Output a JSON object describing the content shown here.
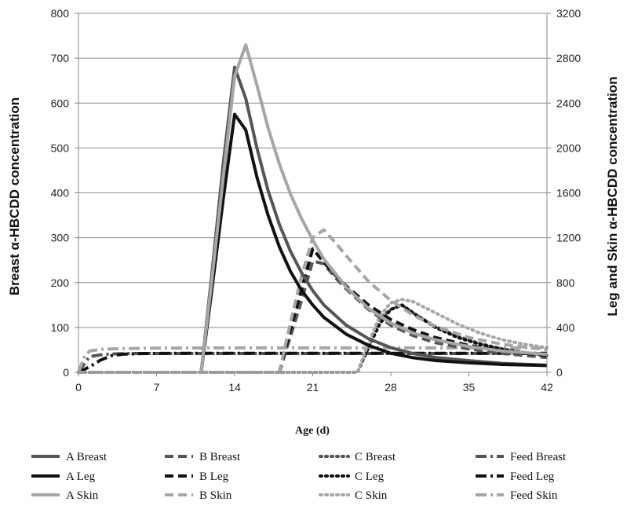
{
  "chart_data": {
    "type": "line",
    "title": "",
    "xlabel": "Age (d)",
    "ylabel_left": "Breast α-HBCDD concentration",
    "ylabel_right": "Leg and Skin α-HBCDD concentration",
    "xlim": [
      0,
      42
    ],
    "ylim_left": [
      0,
      800
    ],
    "ylim_right": [
      0,
      3200
    ],
    "x_ticks": [
      0,
      7,
      14,
      21,
      28,
      35,
      42
    ],
    "y_left_ticks": [
      0,
      100,
      200,
      300,
      400,
      500,
      600,
      700,
      800
    ],
    "y_right_ticks": [
      0,
      400,
      800,
      1200,
      1600,
      2000,
      2400,
      2800,
      3200
    ],
    "grid": "horizontal",
    "legend_position": "bottom",
    "colors": {
      "dark_gray": "#555555",
      "black": "#111111",
      "light_gray": "#a6a6a6"
    },
    "series": [
      {
        "name": "A Breast",
        "axis": "left",
        "style": "solid",
        "color": "#555555",
        "points": [
          [
            11,
            0
          ],
          [
            12,
            230
          ],
          [
            13,
            470
          ],
          [
            14,
            680
          ],
          [
            15,
            610
          ],
          [
            16,
            500
          ],
          [
            17,
            405
          ],
          [
            18,
            330
          ],
          [
            19,
            270
          ],
          [
            20,
            222
          ],
          [
            21,
            182
          ],
          [
            22,
            150
          ],
          [
            24,
            105
          ],
          [
            26,
            75
          ],
          [
            28,
            55
          ],
          [
            30,
            42
          ],
          [
            32,
            33
          ],
          [
            35,
            26
          ],
          [
            38,
            20
          ],
          [
            42,
            16
          ]
        ]
      },
      {
        "name": "A Leg",
        "axis": "right",
        "style": "solid",
        "color": "#111111",
        "points": [
          [
            11,
            0
          ],
          [
            12,
            770
          ],
          [
            13,
            1560
          ],
          [
            14,
            2300
          ],
          [
            15,
            2160
          ],
          [
            16,
            1740
          ],
          [
            17,
            1400
          ],
          [
            18,
            1120
          ],
          [
            19,
            900
          ],
          [
            20,
            730
          ],
          [
            21,
            600
          ],
          [
            22,
            490
          ],
          [
            24,
            340
          ],
          [
            26,
            240
          ],
          [
            28,
            170
          ],
          [
            30,
            130
          ],
          [
            32,
            105
          ],
          [
            35,
            85
          ],
          [
            38,
            70
          ],
          [
            42,
            60
          ]
        ]
      },
      {
        "name": "A Skin",
        "axis": "right",
        "style": "solid",
        "color": "#a6a6a6",
        "points": [
          [
            11,
            0
          ],
          [
            12,
            860
          ],
          [
            13,
            1760
          ],
          [
            14,
            2640
          ],
          [
            15,
            2920
          ],
          [
            16,
            2560
          ],
          [
            17,
            2180
          ],
          [
            18,
            1860
          ],
          [
            19,
            1590
          ],
          [
            20,
            1370
          ],
          [
            21,
            1180
          ],
          [
            22,
            1010
          ],
          [
            24,
            760
          ],
          [
            26,
            570
          ],
          [
            28,
            440
          ],
          [
            30,
            350
          ],
          [
            32,
            290
          ],
          [
            35,
            230
          ],
          [
            38,
            190
          ],
          [
            42,
            160
          ]
        ]
      },
      {
        "name": "B Breast",
        "axis": "left",
        "style": "dashed",
        "color": "#555555",
        "points": [
          [
            0,
            0
          ],
          [
            18,
            0
          ],
          [
            19,
            80
          ],
          [
            20,
            160
          ],
          [
            21,
            248
          ],
          [
            22,
            242
          ],
          [
            23,
            212
          ],
          [
            24,
            186
          ],
          [
            26,
            140
          ],
          [
            28,
            105
          ],
          [
            30,
            82
          ],
          [
            32,
            66
          ],
          [
            35,
            52
          ],
          [
            38,
            42
          ],
          [
            42,
            33
          ]
        ]
      },
      {
        "name": "B Leg",
        "axis": "right",
        "style": "dashed",
        "color": "#111111",
        "points": [
          [
            0,
            0
          ],
          [
            18,
            0
          ],
          [
            19,
            380
          ],
          [
            20,
            740
          ],
          [
            21,
            1100
          ],
          [
            22,
            980
          ],
          [
            23,
            870
          ],
          [
            24,
            770
          ],
          [
            26,
            600
          ],
          [
            28,
            470
          ],
          [
            30,
            380
          ],
          [
            32,
            310
          ],
          [
            35,
            240
          ],
          [
            38,
            190
          ],
          [
            42,
            150
          ]
        ]
      },
      {
        "name": "B Skin",
        "axis": "right",
        "style": "dashed",
        "color": "#a6a6a6",
        "points": [
          [
            0,
            0
          ],
          [
            18,
            0
          ],
          [
            19,
            440
          ],
          [
            20,
            860
          ],
          [
            21,
            1200
          ],
          [
            22,
            1270
          ],
          [
            23,
            1160
          ],
          [
            24,
            1040
          ],
          [
            26,
            810
          ],
          [
            28,
            640
          ],
          [
            30,
            510
          ],
          [
            32,
            410
          ],
          [
            35,
            310
          ],
          [
            38,
            250
          ],
          [
            42,
            200
          ]
        ]
      },
      {
        "name": "C Breast",
        "axis": "left",
        "style": "dotted",
        "color": "#555555",
        "points": [
          [
            0,
            0
          ],
          [
            25,
            0
          ],
          [
            26,
            60
          ],
          [
            27,
            120
          ],
          [
            28,
            140
          ],
          [
            29,
            150
          ],
          [
            30,
            132
          ],
          [
            32,
            102
          ],
          [
            34,
            80
          ],
          [
            36,
            64
          ],
          [
            38,
            52
          ],
          [
            40,
            44
          ],
          [
            42,
            38
          ]
        ]
      },
      {
        "name": "C Leg",
        "axis": "right",
        "style": "dotted",
        "color": "#111111",
        "points": [
          [
            0,
            0
          ],
          [
            25,
            0
          ],
          [
            26,
            220
          ],
          [
            27,
            430
          ],
          [
            28,
            560
          ],
          [
            29,
            600
          ],
          [
            30,
            530
          ],
          [
            32,
            400
          ],
          [
            34,
            310
          ],
          [
            36,
            250
          ],
          [
            38,
            205
          ],
          [
            40,
            175
          ],
          [
            42,
            150
          ]
        ]
      },
      {
        "name": "C Skin",
        "axis": "right",
        "style": "dotted",
        "color": "#a6a6a6",
        "points": [
          [
            0,
            0
          ],
          [
            25,
            0
          ],
          [
            26,
            260
          ],
          [
            27,
            500
          ],
          [
            28,
            620
          ],
          [
            29,
            650
          ],
          [
            30,
            630
          ],
          [
            32,
            530
          ],
          [
            34,
            430
          ],
          [
            36,
            350
          ],
          [
            38,
            290
          ],
          [
            40,
            250
          ],
          [
            42,
            220
          ]
        ]
      },
      {
        "name": "Feed Breast",
        "axis": "left",
        "style": "dashdot",
        "color": "#555555",
        "points": [
          [
            0,
            0
          ],
          [
            0.5,
            18
          ],
          [
            1,
            35
          ],
          [
            2,
            39
          ],
          [
            3,
            41
          ],
          [
            5,
            42
          ],
          [
            8,
            42
          ],
          [
            42,
            42
          ]
        ]
      },
      {
        "name": "Feed Leg",
        "axis": "right",
        "style": "dashdot",
        "color": "#111111",
        "points": [
          [
            0,
            0
          ],
          [
            1,
            50
          ],
          [
            2,
            110
          ],
          [
            3,
            150
          ],
          [
            4,
            162
          ],
          [
            6,
            168
          ],
          [
            10,
            170
          ],
          [
            42,
            170
          ]
        ]
      },
      {
        "name": "Feed Skin",
        "axis": "right",
        "style": "dashdot",
        "color": "#a6a6a6",
        "points": [
          [
            0,
            0
          ],
          [
            0.5,
            130
          ],
          [
            1,
            190
          ],
          [
            2,
            205
          ],
          [
            4,
            212
          ],
          [
            7,
            216
          ],
          [
            12,
            218
          ],
          [
            42,
            218
          ]
        ]
      }
    ]
  }
}
